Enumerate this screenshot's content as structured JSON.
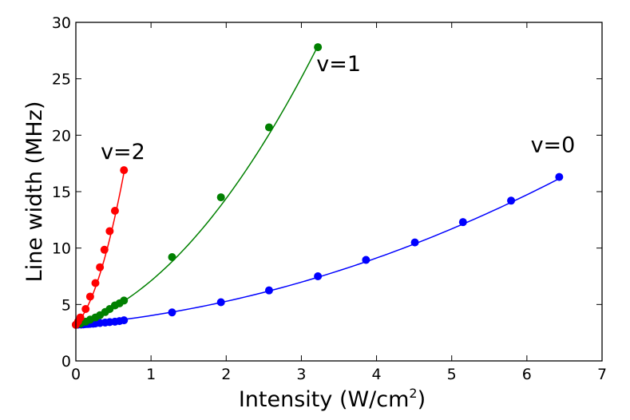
{
  "chart_data": {
    "type": "line",
    "title": "",
    "xlabel": "Intensity (W/cm",
    "xlabel_sup": "2",
    "xlabel_close": ")",
    "ylabel": "Line width (MHz)",
    "xlim": [
      0,
      7
    ],
    "ylim": [
      0,
      30
    ],
    "xticks": [
      0,
      1,
      2,
      3,
      4,
      5,
      6,
      7
    ],
    "yticks": [
      0,
      5,
      10,
      15,
      20,
      25,
      30
    ],
    "grid": false,
    "series": [
      {
        "name": "v=0",
        "color": "#0000ff",
        "label_at": [
          6.05,
          18.5
        ],
        "points": [
          [
            0.0,
            3.2
          ],
          [
            0.03,
            3.21
          ],
          [
            0.07,
            3.22
          ],
          [
            0.1,
            3.24
          ],
          [
            0.13,
            3.26
          ],
          [
            0.16,
            3.27
          ],
          [
            0.19,
            3.28
          ],
          [
            0.23,
            3.3
          ],
          [
            0.26,
            3.32
          ],
          [
            0.32,
            3.36
          ],
          [
            0.39,
            3.4
          ],
          [
            0.45,
            3.44
          ],
          [
            0.52,
            3.48
          ],
          [
            0.58,
            3.53
          ],
          [
            0.64,
            3.6
          ],
          [
            1.28,
            4.3
          ],
          [
            1.93,
            5.2
          ],
          [
            2.57,
            6.25
          ],
          [
            3.22,
            7.5
          ],
          [
            3.86,
            8.95
          ],
          [
            4.51,
            10.5
          ],
          [
            5.15,
            12.3
          ],
          [
            5.79,
            14.2
          ],
          [
            6.43,
            16.3
          ]
        ],
        "fit": [
          3.2,
          0.6,
          0.22
        ]
      },
      {
        "name": "v=1",
        "color": "#008000",
        "label_at": [
          3.2,
          25.7
        ],
        "points": [
          [
            0.0,
            3.2
          ],
          [
            0.06,
            3.3
          ],
          [
            0.13,
            3.48
          ],
          [
            0.19,
            3.66
          ],
          [
            0.26,
            3.85
          ],
          [
            0.32,
            4.05
          ],
          [
            0.39,
            4.33
          ],
          [
            0.45,
            4.6
          ],
          [
            0.52,
            4.92
          ],
          [
            0.58,
            5.1
          ],
          [
            0.64,
            5.35
          ],
          [
            1.28,
            9.2
          ],
          [
            1.93,
            14.5
          ],
          [
            2.57,
            20.7
          ],
          [
            3.22,
            27.8
          ]
        ],
        "fit": [
          3.2,
          2.2,
          1.7
        ]
      },
      {
        "name": "v=2",
        "color": "#ff0000",
        "label_at": [
          0.33,
          17.9
        ],
        "points": [
          [
            0.0,
            3.2
          ],
          [
            0.03,
            3.5
          ],
          [
            0.06,
            3.85
          ],
          [
            0.13,
            4.6
          ],
          [
            0.19,
            5.7
          ],
          [
            0.26,
            6.9
          ],
          [
            0.32,
            8.3
          ],
          [
            0.38,
            9.85
          ],
          [
            0.45,
            11.5
          ],
          [
            0.52,
            13.3
          ],
          [
            0.64,
            16.9
          ]
        ],
        "fit": [
          3.2,
          7.0,
          22.0
        ]
      }
    ]
  }
}
